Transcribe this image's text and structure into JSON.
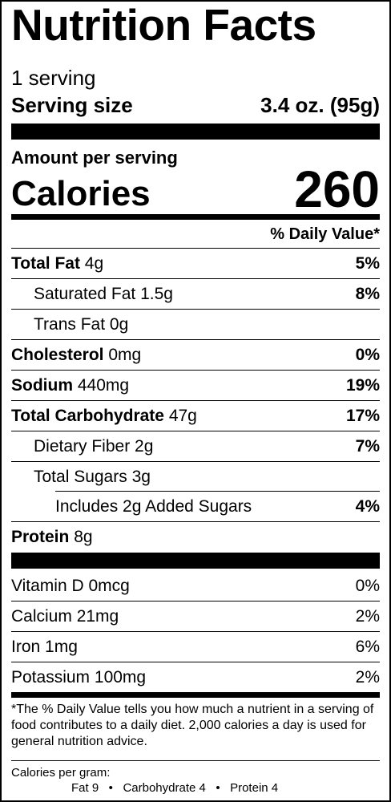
{
  "title": "Nutrition Facts",
  "servings": "1 serving",
  "serving_size": {
    "label": "Serving size",
    "value": "3.4 oz. (95g)"
  },
  "amount_per_serving": "Amount per serving",
  "calories": {
    "label": "Calories",
    "value": "260"
  },
  "daily_value_header": "% Daily Value*",
  "nutrients": [
    {
      "name": "Total Fat",
      "amount": "4g",
      "dv": "5%"
    },
    {
      "name": "Saturated Fat",
      "amount": "1.5g",
      "dv": "8%"
    },
    {
      "name": "Trans Fat",
      "amount": "0g",
      "dv": ""
    },
    {
      "name": "Cholesterol",
      "amount": "0mg",
      "dv": "0%"
    },
    {
      "name": "Sodium",
      "amount": "440mg",
      "dv": "19%"
    },
    {
      "name": "Total Carbohydrate",
      "amount": "47g",
      "dv": "17%"
    },
    {
      "name": "Dietary Fiber",
      "amount": "2g",
      "dv": "7%"
    },
    {
      "name": "Total Sugars",
      "amount": "3g",
      "dv": ""
    },
    {
      "name": "Includes 2g Added Sugars",
      "amount": "",
      "dv": "4%"
    },
    {
      "name": "Protein",
      "amount": "8g",
      "dv": ""
    }
  ],
  "vitamins": [
    {
      "name": "Vitamin D",
      "amount": "0mcg",
      "dv": "0%"
    },
    {
      "name": "Calcium",
      "amount": "21mg",
      "dv": "2%"
    },
    {
      "name": "Iron",
      "amount": "1mg",
      "dv": "6%"
    },
    {
      "name": "Potassium",
      "amount": "100mg",
      "dv": "2%"
    }
  ],
  "footnote": "*The % Daily Value tells you how much a nutrient in a serving of food contributes to a daily diet. 2,000 calories a day is used for general nutrition advice.",
  "calories_per_gram": {
    "label": "Calories per gram:",
    "line": "Fat 9   •   Carbohydrate 4   •   Protein 4"
  }
}
